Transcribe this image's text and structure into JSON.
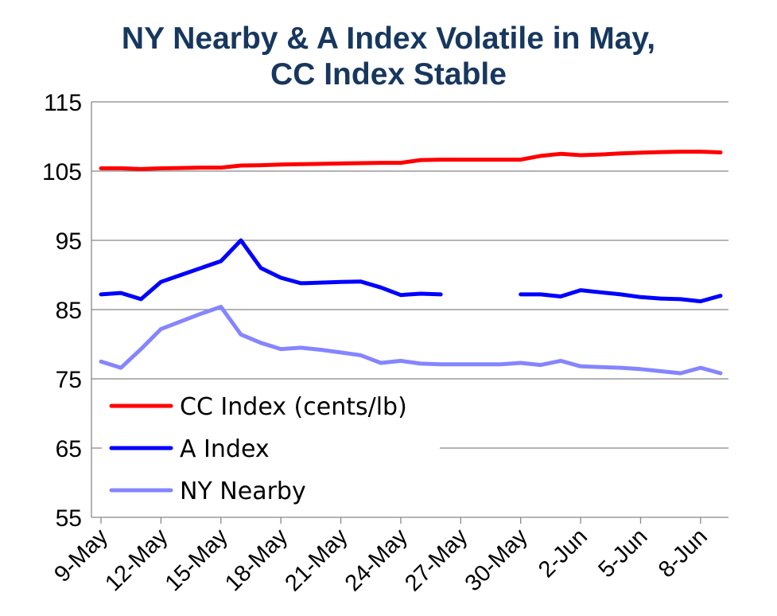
{
  "chart_data": {
    "type": "line",
    "title_lines": [
      "NY Nearby & A Index Volatile in May,",
      "CC Index Stable"
    ],
    "xlabel": "",
    "ylabel": "",
    "ylim": [
      55,
      115
    ],
    "yticks": [
      55,
      65,
      75,
      85,
      95,
      105,
      115
    ],
    "grid": "horizontal",
    "legend_placement": "lower-left",
    "x_tick_labels": [
      "9-May",
      "12-May",
      "15-May",
      "18-May",
      "21-May",
      "24-May",
      "27-May",
      "30-May",
      "2-Jun",
      "5-Jun",
      "8-Jun"
    ],
    "x": [
      "9-May",
      "10-May",
      "11-May",
      "12-May",
      "13-May",
      "14-May",
      "15-May",
      "16-May",
      "17-May",
      "18-May",
      "19-May",
      "20-May",
      "21-May",
      "22-May",
      "23-May",
      "24-May",
      "25-May",
      "26-May",
      "27-May",
      "28-May",
      "29-May",
      "30-May",
      "31-May",
      "1-Jun",
      "2-Jun",
      "3-Jun",
      "4-Jun",
      "5-Jun",
      "6-Jun",
      "7-Jun",
      "8-Jun",
      "9-Jun"
    ],
    "series": [
      {
        "name": "CC Index (cents/lb)",
        "color": "#ff0000",
        "values": [
          105.4,
          105.4,
          105.3,
          105.4,
          105.45,
          105.5,
          105.5,
          105.8,
          105.85,
          105.95,
          106.0,
          106.05,
          106.1,
          106.15,
          106.2,
          106.2,
          106.6,
          106.65,
          106.65,
          106.65,
          106.65,
          106.65,
          107.2,
          107.5,
          107.3,
          107.4,
          107.55,
          107.65,
          107.75,
          107.8,
          107.8,
          107.7
        ]
      },
      {
        "name": "A Index",
        "color": "#0000ff",
        "values": [
          87.2,
          87.4,
          86.5,
          89.0,
          90.0,
          91.0,
          92.0,
          95.0,
          91.0,
          89.6,
          88.8,
          88.9,
          89.0,
          89.05,
          88.2,
          87.1,
          87.3,
          87.2,
          null,
          null,
          null,
          87.2,
          87.2,
          86.9,
          87.8,
          87.5,
          87.2,
          86.8,
          86.6,
          86.5,
          86.2,
          87.0
        ]
      },
      {
        "name": "NY Nearby",
        "color": "#8585ff",
        "values": [
          77.5,
          76.6,
          79.3,
          82.2,
          83.3,
          84.4,
          85.4,
          81.4,
          80.2,
          79.3,
          79.5,
          79.2,
          78.8,
          78.4,
          77.3,
          77.6,
          77.2,
          77.1,
          77.1,
          77.1,
          77.1,
          77.3,
          77.0,
          77.6,
          76.8,
          76.7,
          76.6,
          76.4,
          76.1,
          75.8,
          76.6,
          75.8
        ]
      }
    ]
  }
}
